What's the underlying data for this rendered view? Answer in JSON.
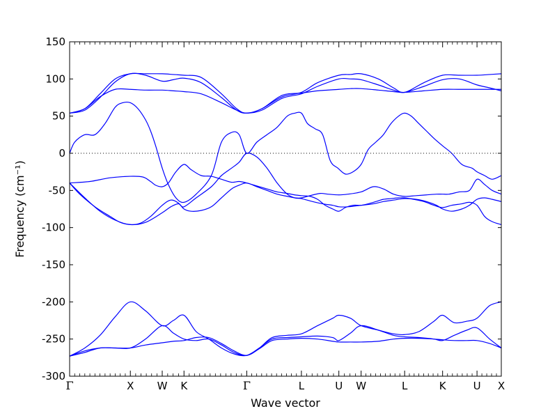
{
  "chart_data": {
    "type": "line",
    "xlabel": "Wave vector",
    "ylabel": "Frequency (cm⁻¹)",
    "ylim": [
      -300,
      150
    ],
    "xlim": [
      0,
      8.53
    ],
    "yticks": [
      -300,
      -250,
      -200,
      -150,
      -100,
      -50,
      0,
      50,
      100,
      150
    ],
    "xticks": [
      {
        "label": "Γ",
        "x": 0
      },
      {
        "label": "X",
        "x": 1.2
      },
      {
        "label": "W",
        "x": 1.83
      },
      {
        "label": "K",
        "x": 2.26
      },
      {
        "label": "Γ",
        "x": 3.5
      },
      {
        "label": "L",
        "x": 4.58
      },
      {
        "label": "U",
        "x": 5.32
      },
      {
        "label": "W",
        "x": 5.76
      },
      {
        "label": "L",
        "x": 6.62
      },
      {
        "label": "K",
        "x": 7.37
      },
      {
        "label": "U",
        "x": 8.05
      },
      {
        "label": "X",
        "x": 8.53
      }
    ],
    "zero_line": true,
    "line_color": "#0000ff",
    "series": [
      {
        "x": [
          0,
          0.3,
          0.6,
          0.9,
          1.2,
          1.5,
          1.83,
          2.05,
          2.26,
          2.6,
          3.0,
          3.3,
          3.5,
          3.8,
          4.2,
          4.58,
          4.9,
          5.32,
          5.55,
          5.76,
          6.1,
          6.4,
          6.62,
          7.0,
          7.37,
          7.7,
          8.05,
          8.3,
          8.53
        ],
        "y": [
          54,
          60,
          80,
          100,
          107,
          107,
          107,
          106,
          105,
          102,
          80,
          60,
          54,
          60,
          76,
          82,
          95,
          105,
          106,
          107,
          100,
          88,
          82,
          95,
          105,
          105,
          105,
          106,
          107
        ]
      },
      {
        "x": [
          0,
          0.3,
          0.6,
          0.9,
          1.2,
          1.5,
          1.83,
          2.05,
          2.26,
          2.6,
          3.0,
          3.3,
          3.5,
          3.8,
          4.2,
          4.58,
          4.9,
          5.32,
          5.55,
          5.76,
          6.1,
          6.4,
          6.62,
          7.0,
          7.37,
          7.7,
          8.05,
          8.3,
          8.53
        ],
        "y": [
          54,
          58,
          75,
          96,
          107,
          105,
          97,
          99,
          101,
          95,
          75,
          58,
          54,
          58,
          74,
          80,
          90,
          100,
          100,
          99,
          92,
          85,
          82,
          90,
          99,
          100,
          92,
          88,
          84
        ]
      },
      {
        "x": [
          0,
          0.3,
          0.6,
          0.9,
          1.2,
          1.5,
          1.83,
          2.05,
          2.26,
          2.6,
          3.0,
          3.3,
          3.5,
          3.8,
          4.2,
          4.58,
          4.9,
          5.32,
          5.55,
          5.76,
          6.1,
          6.4,
          6.62,
          7.0,
          7.37,
          7.7,
          8.05,
          8.3,
          8.53
        ],
        "y": [
          54,
          60,
          76,
          86,
          86,
          85,
          85,
          84,
          83,
          80,
          68,
          58,
          54,
          60,
          78,
          81,
          84,
          86,
          87,
          87,
          85,
          83,
          82,
          84,
          86,
          86,
          86,
          86,
          86
        ]
      },
      {
        "x": [
          0,
          0.1,
          0.3,
          0.5,
          0.7,
          0.9,
          1.05,
          1.2,
          1.35,
          1.5,
          1.6,
          1.7,
          1.83,
          1.95,
          2.1,
          2.26,
          2.5,
          2.8,
          3.0,
          3.2,
          3.35,
          3.5,
          3.7,
          3.9,
          4.1,
          4.3,
          4.45,
          4.58,
          4.7,
          4.85,
          5.0,
          5.15,
          5.3,
          5.45,
          5.6,
          5.76,
          5.9,
          6.05,
          6.2,
          6.35,
          6.5,
          6.62,
          6.75,
          6.9,
          7.05,
          7.2,
          7.37,
          7.55,
          7.75,
          7.95,
          8.05,
          8.2,
          8.35,
          8.53
        ],
        "y": [
          0,
          15,
          25,
          25,
          40,
          62,
          68,
          68,
          60,
          45,
          30,
          10,
          -20,
          -42,
          -60,
          -66,
          -55,
          -30,
          15,
          28,
          25,
          0,
          15,
          25,
          35,
          50,
          54,
          54,
          40,
          33,
          25,
          -10,
          -20,
          -28,
          -25,
          -15,
          5,
          15,
          25,
          40,
          50,
          54,
          50,
          40,
          30,
          20,
          10,
          0,
          -15,
          -20,
          -25,
          -30,
          -35,
          -30
        ]
      },
      {
        "x": [
          0,
          0.4,
          0.8,
          1.2,
          1.45,
          1.6,
          1.7,
          1.83,
          1.95,
          2.1,
          2.26,
          2.4,
          2.6,
          2.8,
          3.0,
          3.2,
          3.35,
          3.5,
          3.7,
          3.9,
          4.1,
          4.3,
          4.45,
          4.58,
          4.75,
          4.9,
          5.05,
          5.2,
          5.32,
          5.45,
          5.6,
          5.76,
          5.9,
          6.05,
          6.2,
          6.35,
          6.5,
          6.62,
          6.8,
          7.0,
          7.2,
          7.37,
          7.55,
          7.75,
          7.9,
          8.05,
          8.2,
          8.35,
          8.53
        ],
        "y": [
          -40,
          -38,
          -33,
          -31,
          -32,
          -38,
          -43,
          -45,
          -40,
          -25,
          -15,
          -22,
          -30,
          -31,
          -35,
          -39,
          -38,
          -40,
          -44,
          -48,
          -52,
          -54,
          -56,
          -57,
          -58,
          -62,
          -70,
          -75,
          -78,
          -73,
          -70,
          -70,
          -68,
          -65,
          -62,
          -61,
          -60,
          -60,
          -62,
          -65,
          -70,
          -73,
          -70,
          -68,
          -66,
          -70,
          -85,
          -92,
          -96
        ]
      },
      {
        "x": [
          0,
          0.2,
          0.5,
          0.8,
          1.0,
          1.2,
          1.4,
          1.6,
          1.83,
          2.0,
          2.15,
          2.26,
          2.4,
          2.6,
          2.8,
          3.0,
          3.2,
          3.35,
          3.5,
          3.7,
          3.9,
          4.1,
          4.3,
          4.45,
          4.58,
          4.75,
          4.95,
          5.1,
          5.32,
          5.5,
          5.76,
          6.0,
          6.2,
          6.4,
          6.62,
          6.85,
          7.05,
          7.25,
          7.37,
          7.5,
          7.7,
          7.9,
          8.05,
          8.2,
          8.35,
          8.53
        ],
        "y": [
          -40,
          -55,
          -72,
          -85,
          -93,
          -96,
          -94,
          -85,
          -70,
          -63,
          -67,
          -75,
          -78,
          -77,
          -72,
          -60,
          -48,
          -43,
          -40,
          -45,
          -50,
          -55,
          -58,
          -60,
          -60,
          -57,
          -54,
          -55,
          -56,
          -55,
          -52,
          -45,
          -48,
          -55,
          -58,
          -57,
          -56,
          -55,
          -55,
          -55,
          -52,
          -50,
          -35,
          -42,
          -50,
          -55
        ]
      },
      {
        "x": [
          0,
          0.3,
          0.6,
          0.9,
          1.2,
          1.5,
          1.83,
          2.0,
          2.15,
          2.26,
          2.5,
          2.8,
          3.0,
          3.2,
          3.35,
          3.5,
          3.7,
          3.9,
          4.1,
          4.3,
          4.45,
          4.58,
          4.8,
          5.0,
          5.2,
          5.32,
          5.5,
          5.76,
          6.0,
          6.2,
          6.4,
          6.62,
          6.85,
          7.05,
          7.25,
          7.37,
          7.55,
          7.75,
          7.9,
          8.05,
          8.2,
          8.35,
          8.53
        ],
        "y": [
          -40,
          -60,
          -78,
          -90,
          -96,
          -93,
          -80,
          -72,
          -68,
          -72,
          -60,
          -45,
          -30,
          -20,
          -12,
          0,
          -5,
          -20,
          -40,
          -55,
          -60,
          -61,
          -65,
          -68,
          -70,
          -72,
          -72,
          -70,
          -68,
          -65,
          -63,
          -61,
          -62,
          -65,
          -70,
          -75,
          -78,
          -75,
          -70,
          -62,
          -60,
          -62,
          -65
        ]
      },
      {
        "x": [
          0,
          0.3,
          0.6,
          0.9,
          1.2,
          1.5,
          1.83,
          2.05,
          2.26,
          2.5,
          2.75,
          3.0,
          3.25,
          3.5,
          3.75,
          4.0,
          4.3,
          4.58,
          4.9,
          5.2,
          5.32,
          5.55,
          5.76,
          6.1,
          6.4,
          6.62,
          6.9,
          7.2,
          7.37,
          7.6,
          7.85,
          8.05,
          8.3,
          8.53
        ],
        "y": [
          -273,
          -262,
          -245,
          -220,
          -200,
          -212,
          -232,
          -225,
          -218,
          -240,
          -250,
          -262,
          -270,
          -272,
          -262,
          -248,
          -245,
          -243,
          -232,
          -222,
          -218,
          -222,
          -232,
          -238,
          -243,
          -244,
          -240,
          -226,
          -218,
          -228,
          -226,
          -222,
          -205,
          -200
        ]
      },
      {
        "x": [
          0,
          0.3,
          0.6,
          0.9,
          1.2,
          1.5,
          1.83,
          2.05,
          2.26,
          2.5,
          2.75,
          3.0,
          3.25,
          3.5,
          3.75,
          4.0,
          4.3,
          4.58,
          4.9,
          5.2,
          5.32,
          5.55,
          5.76,
          6.1,
          6.4,
          6.62,
          6.9,
          7.2,
          7.37,
          7.6,
          7.85,
          8.05,
          8.3,
          8.53
        ],
        "y": [
          -273,
          -268,
          -262,
          -262,
          -262,
          -250,
          -232,
          -242,
          -250,
          -252,
          -250,
          -258,
          -268,
          -272,
          -262,
          -250,
          -248,
          -247,
          -246,
          -248,
          -252,
          -242,
          -232,
          -238,
          -245,
          -247,
          -248,
          -250,
          -252,
          -245,
          -238,
          -235,
          -250,
          -262
        ]
      },
      {
        "x": [
          0,
          0.3,
          0.6,
          0.9,
          1.2,
          1.5,
          1.83,
          2.05,
          2.26,
          2.5,
          2.75,
          3.0,
          3.25,
          3.5,
          3.75,
          4.0,
          4.3,
          4.58,
          4.9,
          5.2,
          5.32,
          5.55,
          5.76,
          6.1,
          6.4,
          6.62,
          6.9,
          7.2,
          7.37,
          7.6,
          7.85,
          8.05,
          8.3,
          8.53
        ],
        "y": [
          -273,
          -266,
          -262,
          -262,
          -262,
          -258,
          -255,
          -253,
          -252,
          -248,
          -248,
          -256,
          -266,
          -272,
          -263,
          -252,
          -250,
          -249,
          -250,
          -253,
          -254,
          -254,
          -254,
          -253,
          -250,
          -249,
          -249,
          -250,
          -251,
          -252,
          -252,
          -252,
          -256,
          -262
        ]
      }
    ]
  }
}
